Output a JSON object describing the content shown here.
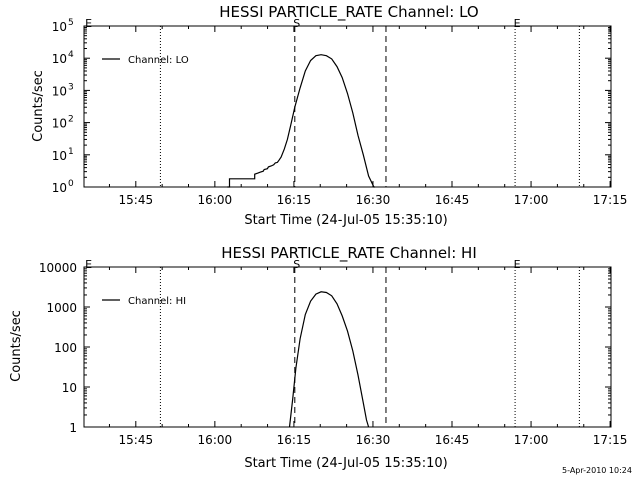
{
  "footer": {
    "timestamp": "5-Apr-2010 10:24"
  },
  "chart_data": [
    {
      "type": "line",
      "title": "HESSI PARTICLE_RATE Channel: LO",
      "xlabel": "Start Time (24-Jul-05 15:35:10)",
      "ylabel": "Counts/sec",
      "y_scale": "log",
      "x_unit": "minutes past 15:35:10",
      "xlim": [
        0,
        100
      ],
      "ylim": [
        1,
        100000
      ],
      "grid": false,
      "legend_position": "top-left",
      "x_ticks": [
        {
          "label": "15:45",
          "x": 9.83
        },
        {
          "label": "16:00",
          "x": 24.83
        },
        {
          "label": "16:15",
          "x": 39.83
        },
        {
          "label": "16:30",
          "x": 54.83
        },
        {
          "label": "16:45",
          "x": 69.83
        },
        {
          "label": "17:00",
          "x": 84.83
        },
        {
          "label": "17:15",
          "x": 99.83
        }
      ],
      "y_ticks": [
        {
          "label": "10",
          "exp": "0",
          "y": 1
        },
        {
          "label": "10",
          "exp": "1",
          "y": 10
        },
        {
          "label": "10",
          "exp": "2",
          "y": 100
        },
        {
          "label": "10",
          "exp": "3",
          "y": 1000
        },
        {
          "label": "10",
          "exp": "4",
          "y": 10000
        },
        {
          "label": "10",
          "exp": "5",
          "y": 100000
        }
      ],
      "markers": [
        {
          "label": "E",
          "x": 0.5,
          "style": "none"
        },
        {
          "label": "",
          "x": 14.5,
          "style": "dotted"
        },
        {
          "label": "S",
          "x": 40.0,
          "style": "dashed"
        },
        {
          "label": "",
          "x": 57.3,
          "style": "dashed"
        },
        {
          "label": "E",
          "x": 81.8,
          "style": "dotted"
        },
        {
          "label": "",
          "x": 94.0,
          "style": "dotted"
        }
      ],
      "series": [
        {
          "name": "Channel: LO",
          "x": [
            27.2,
            27.2,
            27.6,
            27.6,
            28.1,
            28.1,
            32.0,
            32.0,
            32.4,
            32.4,
            33.0,
            33.5,
            34.0,
            34.2,
            34.8,
            35.0,
            35.5,
            36.0,
            36.3,
            36.7,
            37.0,
            37.4,
            38.0,
            38.6,
            39.2,
            40.0,
            41.0,
            42.0,
            43.0,
            44.0,
            45.0,
            46.0,
            47.0,
            48.0,
            49.0,
            50.0,
            51.0,
            52.0,
            53.0,
            54.0,
            55.0,
            55.2
          ],
          "y": [
            1,
            1,
            1,
            1.8,
            1.8,
            1.8,
            1.8,
            1.8,
            1.8,
            2.5,
            2.7,
            2.9,
            3.1,
            3.5,
            3.7,
            4.2,
            4.5,
            4.9,
            5.6,
            5.8,
            6.8,
            8.5,
            15,
            30,
            80,
            300,
            1200,
            4000,
            8500,
            12000,
            12800,
            12000,
            9500,
            5500,
            2500,
            800,
            200,
            40,
            10,
            2.2,
            1,
            1
          ]
        }
      ]
    },
    {
      "type": "line",
      "title": "HESSI PARTICLE_RATE Channel: HI",
      "xlabel": "Start Time (24-Jul-05 15:35:10)",
      "ylabel": "Counts/sec",
      "y_scale": "log",
      "x_unit": "minutes past 15:35:10",
      "xlim": [
        0,
        100
      ],
      "ylim": [
        1,
        10000
      ],
      "grid": false,
      "legend_position": "top-left",
      "x_ticks": [
        {
          "label": "15:45",
          "x": 9.83
        },
        {
          "label": "16:00",
          "x": 24.83
        },
        {
          "label": "16:15",
          "x": 39.83
        },
        {
          "label": "16:30",
          "x": 54.83
        },
        {
          "label": "16:45",
          "x": 69.83
        },
        {
          "label": "17:00",
          "x": 84.83
        },
        {
          "label": "17:15",
          "x": 99.83
        }
      ],
      "y_ticks": [
        {
          "label": "1",
          "exp": "",
          "y": 1
        },
        {
          "label": "10",
          "exp": "",
          "y": 10
        },
        {
          "label": "100",
          "exp": "",
          "y": 100
        },
        {
          "label": "1000",
          "exp": "",
          "y": 1000
        },
        {
          "label": "10000",
          "exp": "",
          "y": 10000
        }
      ],
      "markers": [
        {
          "label": "E",
          "x": 0.5,
          "style": "none"
        },
        {
          "label": "",
          "x": 14.5,
          "style": "dotted"
        },
        {
          "label": "S",
          "x": 40.0,
          "style": "dashed"
        },
        {
          "label": "",
          "x": 57.3,
          "style": "dashed"
        },
        {
          "label": "E",
          "x": 81.8,
          "style": "dotted"
        },
        {
          "label": "",
          "x": 94.0,
          "style": "dotted"
        }
      ],
      "series": [
        {
          "name": "Channel: HI",
          "x": [
            39.0,
            39.6,
            40.2,
            41.0,
            42.0,
            43.0,
            44.0,
            45.0,
            46.0,
            47.0,
            48.0,
            49.0,
            50.0,
            51.0,
            52.0,
            53.0,
            53.6,
            54.0
          ],
          "y": [
            1,
            5,
            30,
            160,
            650,
            1400,
            2100,
            2400,
            2300,
            1900,
            1200,
            600,
            250,
            80,
            20,
            4,
            1.5,
            1
          ]
        }
      ]
    }
  ]
}
